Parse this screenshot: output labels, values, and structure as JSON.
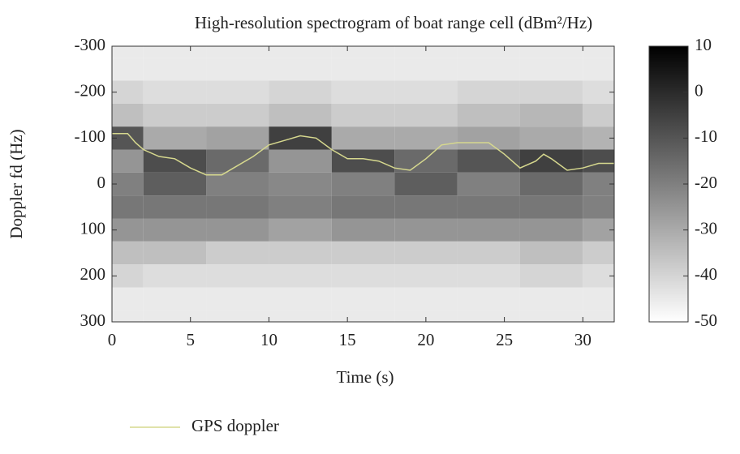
{
  "chart_data": {
    "type": "spectrogram",
    "title": "High-resolution spectrogram of boat range cell (dBm²/Hz)",
    "xlabel": "Time (s)",
    "ylabel": "Doppler fd (Hz)",
    "xlim": [
      0,
      32
    ],
    "xticks": [
      0,
      5,
      10,
      15,
      20,
      25,
      30
    ],
    "ylim": [
      -300,
      300
    ],
    "yticks": [
      -300,
      -200,
      -100,
      0,
      100,
      200,
      300
    ],
    "yreverse": true,
    "clim": [
      -50,
      10
    ],
    "cticks": [
      10,
      0,
      -10,
      -20,
      -30,
      -40,
      -50
    ],
    "grid_x": [
      0,
      4,
      8,
      12,
      16,
      20,
      24,
      28,
      32
    ],
    "grid_y": [
      -300,
      -250,
      -200,
      -150,
      -100,
      -50,
      0,
      50,
      100,
      150,
      200,
      250,
      300
    ],
    "z": [
      [
        -45,
        -45,
        -45,
        -45,
        -45,
        -45,
        -45,
        -45,
        -45
      ],
      [
        -45,
        -45,
        -45,
        -45,
        -45,
        -45,
        -45,
        -45,
        -45
      ],
      [
        -40,
        -42,
        -42,
        -40,
        -42,
        -42,
        -40,
        -40,
        -42
      ],
      [
        -35,
        -38,
        -38,
        -35,
        -38,
        -38,
        -35,
        -33,
        -38
      ],
      [
        -10,
        -30,
        -28,
        -5,
        -30,
        -30,
        -28,
        -30,
        -32
      ],
      [
        -25,
        -8,
        -15,
        -25,
        -8,
        -15,
        -10,
        -5,
        -8
      ],
      [
        -20,
        -12,
        -20,
        -22,
        -20,
        -12,
        -20,
        -15,
        -20
      ],
      [
        -18,
        -18,
        -18,
        -20,
        -18,
        -18,
        -18,
        -18,
        -20
      ],
      [
        -25,
        -25,
        -25,
        -28,
        -25,
        -25,
        -25,
        -25,
        -28
      ],
      [
        -35,
        -35,
        -38,
        -38,
        -38,
        -38,
        -38,
        -35,
        -38
      ],
      [
        -40,
        -42,
        -42,
        -42,
        -42,
        -42,
        -42,
        -40,
        -42
      ],
      [
        -45,
        -45,
        -45,
        -45,
        -45,
        -45,
        -45,
        -45,
        -45
      ],
      [
        -45,
        -45,
        -45,
        -45,
        -45,
        -45,
        -45,
        -45,
        -45
      ]
    ],
    "series": [
      {
        "name": "GPS doppler",
        "color": "#d6d88e",
        "x": [
          0,
          1,
          1.5,
          2,
          3,
          4,
          5,
          6,
          7,
          8,
          9,
          10,
          11,
          12,
          13,
          14,
          15,
          16,
          17,
          18,
          19,
          20,
          21,
          22,
          23,
          24,
          25,
          26,
          27,
          27.5,
          28,
          29,
          30,
          31,
          32
        ],
        "values": [
          -110,
          -110,
          -90,
          -75,
          -60,
          -55,
          -35,
          -20,
          -20,
          -40,
          -60,
          -85,
          -95,
          -105,
          -100,
          -75,
          -55,
          -55,
          -50,
          -35,
          -30,
          -55,
          -85,
          -90,
          -90,
          -90,
          -65,
          -35,
          -50,
          -65,
          -55,
          -30,
          -35,
          -45,
          -45
        ]
      }
    ]
  }
}
